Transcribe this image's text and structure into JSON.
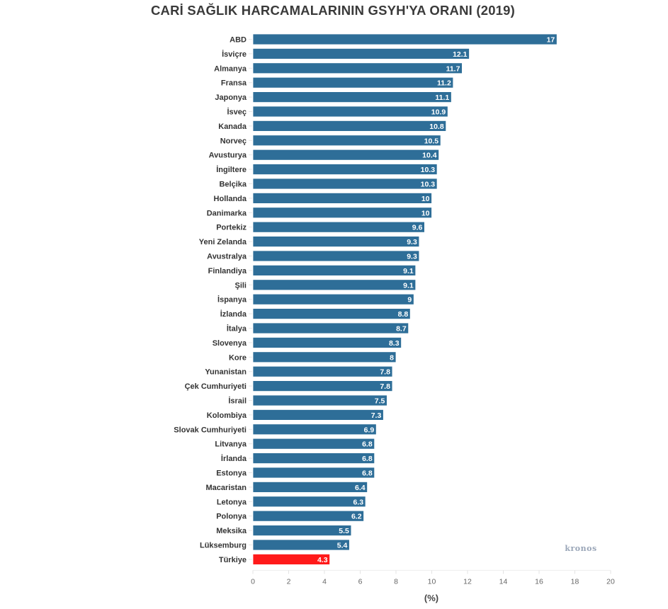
{
  "chart_data": {
    "type": "bar",
    "orientation": "horizontal",
    "title": "CARİ SAĞLIK HARCAMALARININ GSYH'YA ORANI (2019)",
    "xlabel": "(%)",
    "ylabel": "",
    "xlim": [
      0,
      20
    ],
    "xticks": [
      0,
      2,
      4,
      6,
      8,
      10,
      12,
      14,
      16,
      18,
      20
    ],
    "grid": false,
    "watermark": "kronos",
    "colors": {
      "default": "#2e6e98",
      "highlight": "#ff1a1a"
    },
    "highlight_category": "Türkiye",
    "categories": [
      "ABD",
      "İsviçre",
      "Almanya",
      "Fransa",
      "Japonya",
      "İsveç",
      "Kanada",
      "Norveç",
      "Avusturya",
      "İngiltere",
      "Belçika",
      "Hollanda",
      "Danimarka",
      "Portekiz",
      "Yeni Zelanda",
      "Avustralya",
      "Finlandiya",
      "Şili",
      "İspanya",
      "İzlanda",
      "İtalya",
      "Slovenya",
      "Kore",
      "Yunanistan",
      "Çek Cumhuriyeti",
      "İsrail",
      "Kolombiya",
      "Slovak Cumhuriyeti",
      "Litvanya",
      "İrlanda",
      "Estonya",
      "Macaristan",
      "Letonya",
      "Polonya",
      "Meksika",
      "Lüksemburg",
      "Türkiye"
    ],
    "values": [
      17,
      12.1,
      11.7,
      11.2,
      11.1,
      10.9,
      10.8,
      10.5,
      10.4,
      10.3,
      10.3,
      10,
      10,
      9.6,
      9.3,
      9.3,
      9.1,
      9.1,
      9,
      8.8,
      8.7,
      8.3,
      8,
      7.8,
      7.8,
      7.5,
      7.3,
      6.9,
      6.8,
      6.8,
      6.8,
      6.4,
      6.3,
      6.2,
      5.5,
      5.4,
      4.3
    ],
    "value_labels": [
      "17",
      "12.1",
      "11.7",
      "11.2",
      "11.1",
      "10.9",
      "10.8",
      "10.5",
      "10.4",
      "10.3",
      "10.3",
      "10",
      "10",
      "9.6",
      "9.3",
      "9.3",
      "9.1",
      "9.1",
      "9",
      "8.8",
      "8.7",
      "8.3",
      "8",
      "7.8",
      "7.8",
      "7.5",
      "7.3",
      "6.9",
      "6.8",
      "6.8",
      "6.8",
      "6.4",
      "6.3",
      "6.2",
      "5.5",
      "5.4",
      "4.3"
    ]
  }
}
